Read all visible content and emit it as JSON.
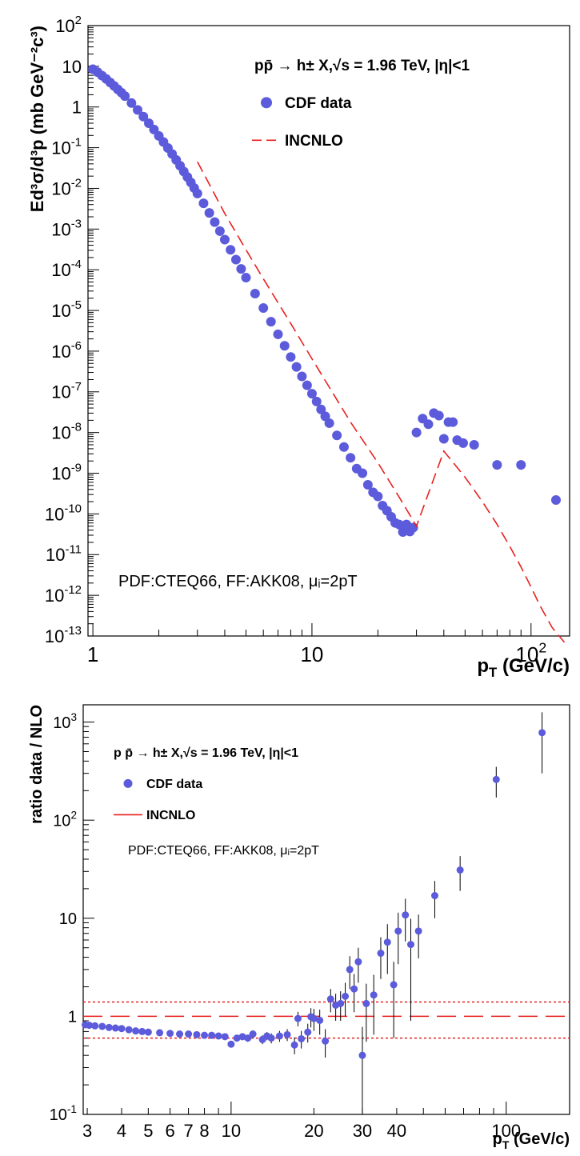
{
  "chart_data": [
    {
      "type": "scatter",
      "scale": {
        "x": "log",
        "y": "log"
      },
      "xlim": [
        0.95,
        150
      ],
      "ylim": [
        1e-13,
        100
      ],
      "x_ticks": [
        {
          "v": 1,
          "label": "1"
        },
        {
          "v": 10,
          "label": "10"
        },
        {
          "v": 100,
          "label": "10",
          "sup": "2"
        }
      ],
      "y_ticks": [
        {
          "v": 100,
          "label": "10",
          "sup": "2"
        },
        {
          "v": 10,
          "label": "10",
          "sup": ""
        },
        {
          "v": 1,
          "label": "1",
          "sup": ""
        },
        {
          "v": 0.1,
          "label": "10",
          "sup": "-1"
        },
        {
          "v": 0.01,
          "label": "10",
          "sup": "-2"
        },
        {
          "v": 0.001,
          "label": "10",
          "sup": "-3"
        },
        {
          "v": 0.0001,
          "label": "10",
          "sup": "-4"
        },
        {
          "v": 1e-05,
          "label": "10",
          "sup": "-5"
        },
        {
          "v": 1e-06,
          "label": "10",
          "sup": "-6"
        },
        {
          "v": 1e-07,
          "label": "10",
          "sup": "-7"
        },
        {
          "v": 1e-08,
          "label": "10",
          "sup": "-8"
        },
        {
          "v": 1e-09,
          "label": "10",
          "sup": "-9"
        },
        {
          "v": 1e-10,
          "label": "10",
          "sup": "-10"
        },
        {
          "v": 1e-11,
          "label": "10",
          "sup": "-11"
        },
        {
          "v": 1e-12,
          "label": "10",
          "sup": "-12"
        },
        {
          "v": 1e-13,
          "label": "10",
          "sup": "-13"
        }
      ],
      "xlabel": "p",
      "xlabel_sub": "T",
      "xlabel_unit": " (GeV/c)",
      "ylabel": "Ed³σ/d³p (mb GeV⁻²c³)",
      "legend_title": "pp̄ → h± X,√s = 1.96 TeV, |η|<1",
      "annotation": "PDF:CTEQ66, FF:AKK08, μᵢ=2pT",
      "grid": false,
      "legend_position": "top-right",
      "series": [
        {
          "name": "CDF data",
          "color": "#5b5bdb",
          "marker": "circle",
          "points": [
            [
              1.0,
              8.5
            ],
            [
              1.05,
              7.2
            ],
            [
              1.1,
              5.9
            ],
            [
              1.15,
              4.9
            ],
            [
              1.2,
              4.0
            ],
            [
              1.25,
              3.3
            ],
            [
              1.3,
              2.7
            ],
            [
              1.35,
              2.25
            ],
            [
              1.4,
              1.85
            ],
            [
              1.5,
              1.25
            ],
            [
              1.6,
              0.85
            ],
            [
              1.7,
              0.58
            ],
            [
              1.8,
              0.4
            ],
            [
              1.9,
              0.28
            ],
            [
              2.0,
              0.195
            ],
            [
              2.1,
              0.138
            ],
            [
              2.2,
              0.098
            ],
            [
              2.3,
              0.07
            ],
            [
              2.4,
              0.05
            ],
            [
              2.5,
              0.036
            ],
            [
              2.6,
              0.026
            ],
            [
              2.7,
              0.019
            ],
            [
              2.8,
              0.014
            ],
            [
              2.9,
              0.0102
            ],
            [
              3.0,
              0.0075
            ],
            [
              3.2,
              0.0043
            ],
            [
              3.4,
              0.0025
            ],
            [
              3.6,
              0.00148
            ],
            [
              3.8,
              0.00089
            ],
            [
              4.0,
              0.00055
            ],
            [
              4.25,
              0.00031
            ],
            [
              4.5,
              0.000178
            ],
            [
              4.75,
              0.000105
            ],
            [
              5.0,
              6.4e-05
            ],
            [
              5.5,
              2.6e-05
            ],
            [
              6.0,
              1.15e-05
            ],
            [
              6.5,
              5.3e-06
            ],
            [
              7.0,
              2.6e-06
            ],
            [
              7.5,
              1.35e-06
            ],
            [
              8.0,
              7.2e-07
            ],
            [
              8.5,
              4.1e-07
            ],
            [
              9.0,
              2.4e-07
            ],
            [
              9.5,
              1.45e-07
            ],
            [
              10.0,
              9e-08
            ],
            [
              10.5,
              5.8e-08
            ],
            [
              11.0,
              3.7e-08
            ],
            [
              11.5,
              2.5e-08
            ],
            [
              12.0,
              1.7e-08
            ],
            [
              13.0,
              8.5e-09
            ],
            [
              14.0,
              4.4e-09
            ],
            [
              15.0,
              2.4e-09
            ],
            [
              16.0,
              1.3e-09
            ],
            [
              17.0,
              1e-09
            ],
            [
              18.0,
              5.2e-10
            ],
            [
              19.0,
              3.4e-10
            ],
            [
              20.0,
              2.7e-10
            ],
            [
              21.0,
              1.6e-10
            ],
            [
              22.0,
              1.2e-10
            ],
            [
              23.0,
              8.5e-11
            ],
            [
              24.0,
              6e-11
            ],
            [
              25.0,
              5.5e-11
            ],
            [
              26.0,
              3.6e-11
            ],
            [
              27.0,
              5.5e-11
            ],
            [
              28.0,
              3.7e-11
            ],
            [
              29.0,
              4.6e-11
            ],
            [
              30.0,
              1e-08
            ],
            [
              32.0,
              2.2e-08
            ],
            [
              34.0,
              1.6e-08
            ],
            [
              36.0,
              3e-08
            ],
            [
              38.0,
              2.6e-08
            ],
            [
              40.0,
              7e-09
            ],
            [
              42.0,
              1.8e-08
            ],
            [
              44.0,
              1.8e-08
            ],
            [
              46.0,
              6.5e-09
            ],
            [
              49.0,
              5.5e-09
            ],
            [
              55.0,
              5e-09
            ],
            [
              70.0,
              1.6e-09
            ],
            [
              90.0,
              1.6e-09
            ],
            [
              130.0,
              2.2e-10
            ]
          ]
        },
        {
          "name": "INCNLO",
          "color": "#e8201e",
          "line": "dashed",
          "points": [
            [
              3.0,
              0.045
            ],
            [
              4.0,
              0.0024
            ],
            [
              5.0,
              0.00031
            ],
            [
              6.0,
              6e-05
            ],
            [
              8.0,
              4.8e-06
            ],
            [
              10.0,
              6.5e-07
            ],
            [
              12.0,
              1.3e-07
            ],
            [
              15.0,
              1.8e-08
            ],
            [
              20.0,
              1.8e-09
            ],
            [
              25.0,
              2.6e-10
            ],
            [
              30.0,
              5e-11
            ],
            [
              40.0,
              3.5e-09
            ],
            [
              50.0,
              8e-10
            ],
            [
              60.0,
              2e-10
            ],
            [
              70.0,
              5.5e-11
            ],
            [
              80.0,
              1.6e-11
            ],
            [
              90.0,
              5e-12
            ],
            [
              100.0,
              1.6e-12
            ],
            [
              110.0,
              5.5e-13
            ],
            [
              125.0,
              1.6e-13
            ],
            [
              142.0,
              7e-14
            ]
          ]
        }
      ]
    },
    {
      "type": "scatter",
      "scale": {
        "x": "log",
        "y": "log"
      },
      "xlim": [
        2.9,
        170
      ],
      "ylim": [
        0.1,
        1500
      ],
      "x_ticks": [
        {
          "v": 3,
          "label": "3"
        },
        {
          "v": 4,
          "label": "4"
        },
        {
          "v": 5,
          "label": "5"
        },
        {
          "v": 6,
          "label": "6"
        },
        {
          "v": 7,
          "label": "7"
        },
        {
          "v": 8,
          "label": "8"
        },
        {
          "v": 10,
          "label": "10"
        },
        {
          "v": 20,
          "label": "20"
        },
        {
          "v": 30,
          "label": "30"
        },
        {
          "v": 40,
          "label": "40"
        },
        {
          "v": 100,
          "label": "100"
        }
      ],
      "y_ticks": [
        {
          "v": 1000,
          "label": "10",
          "sup": "3"
        },
        {
          "v": 100,
          "label": "10",
          "sup": "2"
        },
        {
          "v": 10,
          "label": "10",
          "sup": ""
        },
        {
          "v": 1,
          "label": "1",
          "sup": ""
        },
        {
          "v": 0.1,
          "label": "10",
          "sup": "-1"
        }
      ],
      "xlabel": "p",
      "xlabel_sub": "T",
      "xlabel_unit": " (GeV/c)",
      "ylabel": "ratio data / NLO",
      "legend_title": "p p̄ → h± X,√s = 1.96 TeV, |η|<1",
      "annotation": "PDF:CTEQ66, FF:AKK08, μᵢ=2pT",
      "grid": false,
      "legend_position": "top-left",
      "reference_lines": [
        {
          "y": 1.0,
          "style": "long-dash",
          "color": "#e8201e"
        },
        {
          "y": 1.4,
          "style": "dotted",
          "color": "#e8201e"
        },
        {
          "y": 0.6,
          "style": "dotted",
          "color": "#e8201e"
        }
      ],
      "series": [
        {
          "name": "CDF data",
          "color": "#5b5bdb",
          "marker": "circle",
          "points": [
            [
              2.95,
              0.82
            ],
            [
              3.05,
              0.81
            ],
            [
              3.2,
              0.8
            ],
            [
              3.4,
              0.79
            ],
            [
              3.6,
              0.77
            ],
            [
              3.8,
              0.76
            ],
            [
              4.0,
              0.75
            ],
            [
              4.25,
              0.73
            ],
            [
              4.5,
              0.71
            ],
            [
              4.75,
              0.7
            ],
            [
              5.0,
              0.69
            ],
            [
              5.5,
              0.68
            ],
            [
              6.0,
              0.67
            ],
            [
              6.5,
              0.66
            ],
            [
              7.0,
              0.66
            ],
            [
              7.5,
              0.65
            ],
            [
              8.0,
              0.64
            ],
            [
              8.5,
              0.64
            ],
            [
              9.0,
              0.63
            ],
            [
              9.5,
              0.62
            ],
            [
              10.0,
              0.52
            ],
            [
              10.5,
              0.6
            ],
            [
              11.0,
              0.62
            ],
            [
              11.5,
              0.6
            ],
            [
              12.0,
              0.66
            ],
            [
              13.0,
              0.58
            ],
            [
              13.5,
              0.63
            ],
            [
              14.0,
              0.6
            ],
            [
              15.0,
              0.63
            ],
            [
              16.0,
              0.65
            ],
            [
              17.0,
              0.51
            ],
            [
              17.5,
              0.95
            ],
            [
              18.0,
              0.59
            ],
            [
              19.0,
              0.69
            ],
            [
              19.5,
              0.99
            ],
            [
              20.0,
              0.95
            ],
            [
              21.0,
              0.91
            ],
            [
              22.0,
              0.56
            ],
            [
              23.0,
              1.5
            ],
            [
              24.0,
              1.3
            ],
            [
              25.0,
              1.35
            ],
            [
              26.0,
              1.6
            ],
            [
              27.0,
              3.0
            ],
            [
              28.0,
              1.9
            ],
            [
              29.0,
              3.6
            ],
            [
              30.0,
              0.4
            ],
            [
              31.0,
              1.35
            ],
            [
              33.0,
              1.65
            ],
            [
              35.0,
              4.4
            ],
            [
              37.0,
              5.7
            ],
            [
              39.0,
              2.1
            ],
            [
              40.5,
              7.4
            ],
            [
              43.0,
              10.8
            ],
            [
              45.0,
              5.4
            ],
            [
              48.0,
              7.4
            ],
            [
              55.0,
              17.0
            ],
            [
              68.0,
              31.0
            ],
            [
              92.0,
              260
            ],
            [
              135.0,
              780
            ]
          ],
          "errors": [
            0.02,
            0.02,
            0.02,
            0.02,
            0.02,
            0.02,
            0.02,
            0.02,
            0.02,
            0.02,
            0.02,
            0.02,
            0.02,
            0.02,
            0.02,
            0.02,
            0.02,
            0.02,
            0.03,
            0.03,
            0.04,
            0.05,
            0.05,
            0.05,
            0.06,
            0.06,
            0.06,
            0.07,
            0.08,
            0.09,
            0.1,
            0.16,
            0.12,
            0.15,
            0.22,
            0.24,
            0.26,
            0.18,
            0.4,
            0.4,
            0.45,
            0.6,
            1.1,
            0.8,
            1.4,
            0.38,
            0.8,
            1.0,
            2.0,
            3.0,
            1.5,
            4.0,
            5.0,
            4.5,
            3.5,
            7.0,
            12.0,
            90,
            480
          ]
        }
      ]
    }
  ]
}
